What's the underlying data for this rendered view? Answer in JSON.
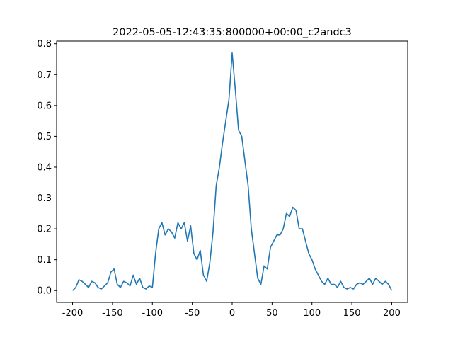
{
  "chart_data": {
    "type": "line",
    "title": "2022-05-05-12:43:35:800000+00:00_c2andc3",
    "x": [
      -200,
      -196,
      -192,
      -188,
      -184,
      -180,
      -176,
      -172,
      -168,
      -164,
      -160,
      -156,
      -152,
      -148,
      -144,
      -140,
      -136,
      -132,
      -128,
      -124,
      -120,
      -116,
      -112,
      -108,
      -104,
      -100,
      -96,
      -92,
      -88,
      -84,
      -80,
      -76,
      -72,
      -68,
      -64,
      -60,
      -56,
      -52,
      -48,
      -44,
      -40,
      -36,
      -32,
      -28,
      -24,
      -20,
      -16,
      -12,
      -8,
      -4,
      0,
      4,
      8,
      12,
      16,
      20,
      24,
      28,
      32,
      36,
      40,
      44,
      48,
      52,
      56,
      60,
      64,
      68,
      72,
      76,
      80,
      84,
      88,
      92,
      96,
      100,
      104,
      108,
      112,
      116,
      120,
      124,
      128,
      132,
      136,
      140,
      144,
      148,
      152,
      156,
      160,
      164,
      168,
      172,
      176,
      180,
      184,
      188,
      192,
      196,
      200
    ],
    "series": [
      {
        "name": "c2andc3",
        "color": "#1f77b4",
        "values": [
          0.0,
          0.01,
          0.035,
          0.03,
          0.02,
          0.01,
          0.03,
          0.025,
          0.01,
          0.005,
          0.015,
          0.025,
          0.06,
          0.07,
          0.02,
          0.01,
          0.03,
          0.025,
          0.015,
          0.05,
          0.02,
          0.04,
          0.01,
          0.005,
          0.015,
          0.01,
          0.12,
          0.2,
          0.22,
          0.18,
          0.2,
          0.19,
          0.17,
          0.22,
          0.2,
          0.22,
          0.16,
          0.21,
          0.12,
          0.1,
          0.13,
          0.05,
          0.03,
          0.09,
          0.19,
          0.34,
          0.4,
          0.48,
          0.55,
          0.62,
          0.77,
          0.65,
          0.52,
          0.5,
          0.42,
          0.34,
          0.2,
          0.12,
          0.04,
          0.02,
          0.08,
          0.07,
          0.14,
          0.16,
          0.18,
          0.18,
          0.2,
          0.25,
          0.24,
          0.27,
          0.26,
          0.2,
          0.2,
          0.16,
          0.12,
          0.1,
          0.07,
          0.05,
          0.03,
          0.02,
          0.04,
          0.02,
          0.02,
          0.01,
          0.03,
          0.01,
          0.005,
          0.01,
          0.005,
          0.02,
          0.025,
          0.02,
          0.03,
          0.04,
          0.02,
          0.04,
          0.03,
          0.02,
          0.03,
          0.02,
          0.0
        ]
      }
    ],
    "xlim": [
      -220,
      220
    ],
    "xticks": [
      -200,
      -150,
      -100,
      -50,
      0,
      50,
      100,
      150,
      200
    ],
    "ylim": [
      -0.0385,
      0.8085
    ],
    "yticks": [
      {
        "value": 0,
        "label": "0.0"
      },
      0.1,
      0.2,
      0.3,
      0.4,
      0.5,
      0.6,
      0.7,
      0.8
    ],
    "grid": false
  }
}
